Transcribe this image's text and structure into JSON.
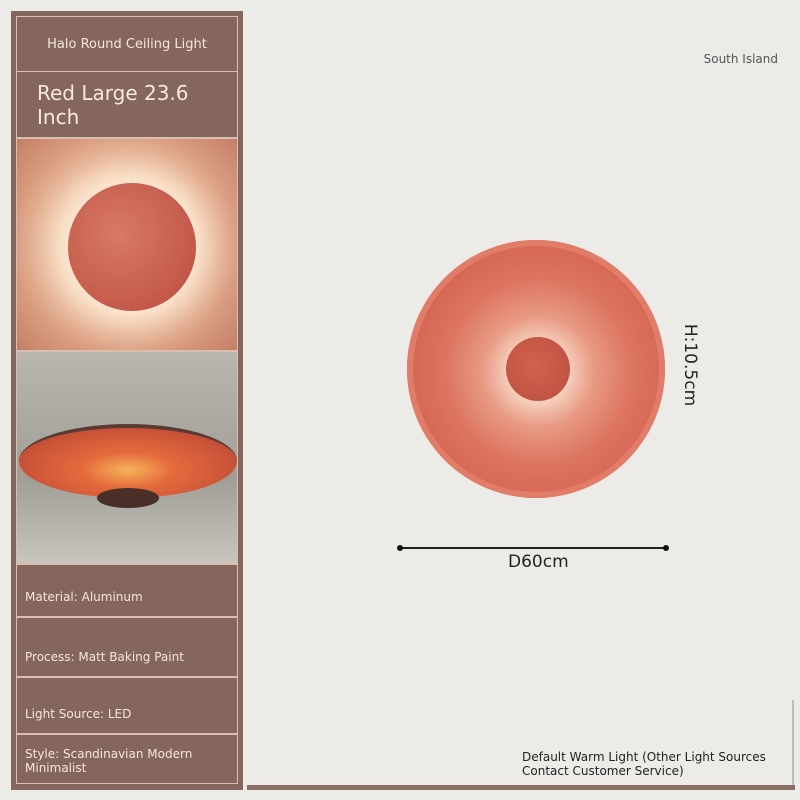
{
  "sidebar": {
    "title": "Halo Round Ceiling Light",
    "variant": "Red Large 23.6 Inch",
    "specs": [
      "Material: Aluminum",
      "Process: Matt Baking Paint",
      "Light Source: LED",
      "Style: Scandinavian Modern Minimalist"
    ]
  },
  "main": {
    "brand": "South Island",
    "diameter_label": "D60cm",
    "height_label": "H:10.5cm",
    "note": "Default Warm Light (Other Light Sources Contact Customer Service)"
  },
  "colors": {
    "panel": "#85665c",
    "lamp": "#d2604e",
    "background": "#ecebe8"
  }
}
